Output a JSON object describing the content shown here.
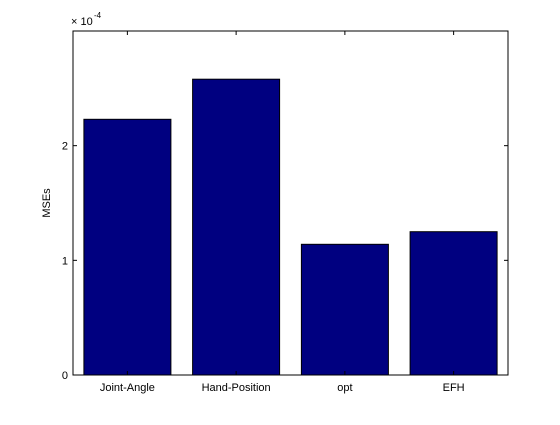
{
  "chart_data": {
    "type": "bar",
    "title": "",
    "xlabel": "",
    "ylabel": "MSEs",
    "y_multiplier": "× 10",
    "y_multiplier_exponent": "-4",
    "categories": [
      "Joint-Angle",
      "Hand-Position",
      "opt",
      "EFH"
    ],
    "values": [
      2.23,
      2.58,
      1.14,
      1.25
    ],
    "ylim": [
      0,
      3
    ],
    "yticks": [
      0,
      1,
      2
    ],
    "ytick_labels": [
      "0",
      "1",
      "2"
    ],
    "grid": false,
    "legend": "none",
    "bar_color": "#000080",
    "bar_edge_color": "#000000"
  }
}
